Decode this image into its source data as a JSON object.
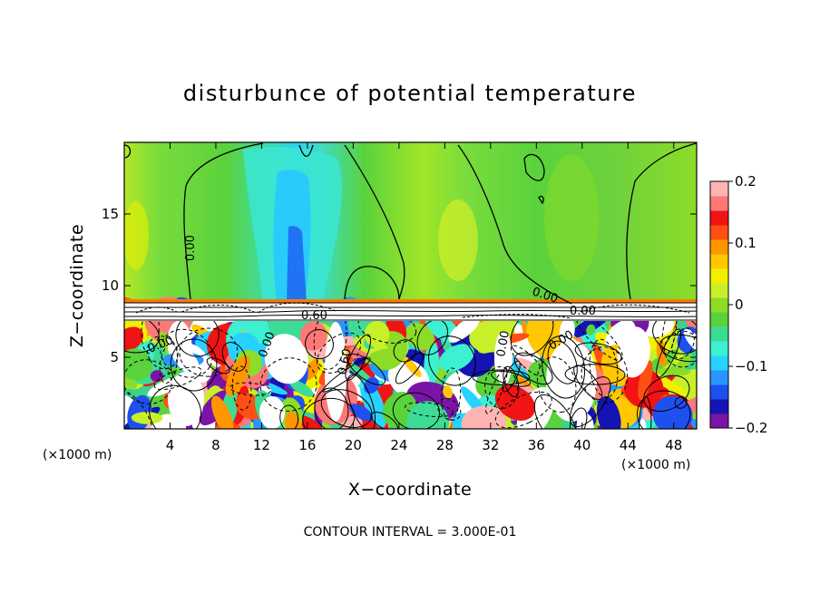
{
  "chart_data": {
    "type": "heatmap",
    "title": "disturbunce of potential temperature",
    "xlabel": "X−coordinate",
    "ylabel": "Z−coordinate",
    "x_unit": "(×1000 m)",
    "x_unit_right": "(×1000 m)",
    "xlim": [
      0,
      50
    ],
    "ylim": [
      0,
      20
    ],
    "xticks": [
      4,
      8,
      12,
      16,
      20,
      24,
      28,
      32,
      36,
      40,
      44,
      48
    ],
    "xtick_labels": [
      "4",
      "8",
      "12",
      "16",
      "20",
      "24",
      "28",
      "32",
      "36",
      "40",
      "44",
      "48"
    ],
    "yticks": [
      5,
      10,
      15
    ],
    "ytick_labels": [
      "5",
      "10",
      "15"
    ],
    "colorbar": {
      "range": [
        -0.2,
        0.2
      ],
      "ticks": [
        -0.2,
        -0.1,
        0,
        0.1,
        0.2
      ],
      "tick_labels": [
        "−0.2",
        "−0.1",
        "0",
        "0.1",
        "0.2"
      ],
      "colors": [
        "#7a14a8",
        "#1414b4",
        "#1e50f0",
        "#2896ff",
        "#28d2ff",
        "#3cf0d2",
        "#3cdc96",
        "#5ad23c",
        "#8cdc28",
        "#c8f028",
        "#f0f000",
        "#ffc800",
        "#ff9600",
        "#ff5014",
        "#f01414",
        "#ff7878",
        "#ffb4b4"
      ]
    },
    "contour_labels": [
      "0.00",
      "0.00",
      "0.00",
      "0.60",
      "0.00",
      "0.00",
      "0.60",
      "0.00",
      "0.00"
    ],
    "note": "CONTOUR INTERVAL = 3.000E-01"
  }
}
